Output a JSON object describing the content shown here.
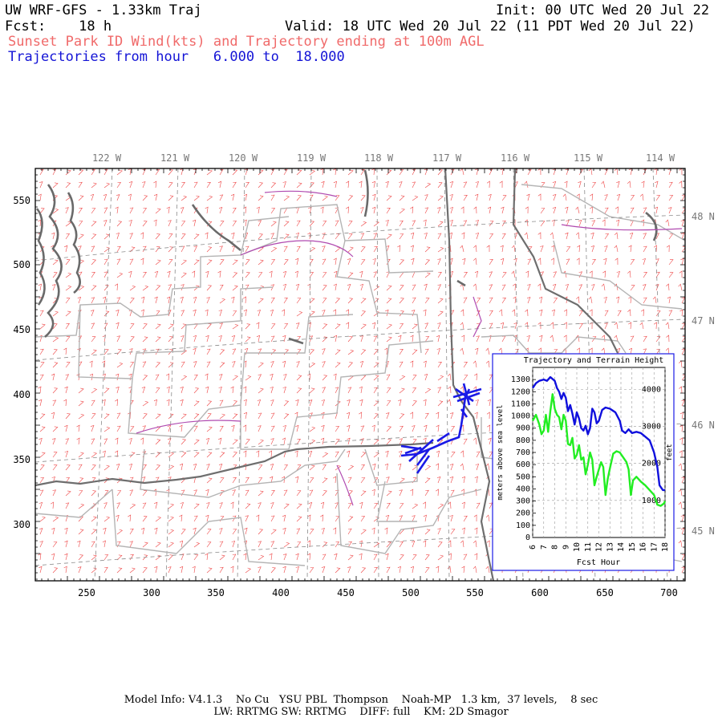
{
  "header": {
    "title": "UW WRF-GFS - 1.33km Traj",
    "init": "Init: 00 UTC Wed 20 Jul 22",
    "fcst_label": "Fcst:",
    "fcst_value": "18 h",
    "valid": "Valid: 18 UTC Wed 20 Jul 22 (11 PDT Wed 20 Jul 22)",
    "subtitle": "Sunset Park ID Wind(kts) and Trajectory ending at 100m AGL",
    "traj_label": "Trajectories from hour",
    "traj_from": "6.000",
    "traj_to_word": "to",
    "traj_to": "18.000"
  },
  "map": {
    "lon_labels": [
      "122 W",
      "121 W",
      "120 W",
      "119 W",
      "118 W",
      "117 W",
      "116 W",
      "115 W",
      "114 W"
    ],
    "lat_labels": [
      "48 N",
      "47 N",
      "46 N",
      "45 N"
    ],
    "x_ticks": [
      "250",
      "300",
      "350",
      "400",
      "450",
      "500",
      "550",
      "600",
      "650",
      "700"
    ],
    "y_ticks": [
      "550",
      "500",
      "450",
      "400",
      "350",
      "300"
    ],
    "colors": {
      "barbs": "#ee4444",
      "state_lines": "#777777",
      "county_lines": "#b0b0b0",
      "water": "#b040b0",
      "trajectory": "#1a1ae6"
    }
  },
  "inset": {
    "title": "Trajectory and Terrain Height",
    "ylabel_left": "meters above sea level",
    "ylabel_right": "feet",
    "xlabel": "Fcst Hour",
    "left_ticks": [
      "0",
      "100",
      "200",
      "300",
      "400",
      "500",
      "600",
      "700",
      "800",
      "900",
      "1000",
      "1100",
      "1200",
      "1300"
    ],
    "right_ticks": [
      "1000",
      "2000",
      "3000",
      "4000"
    ],
    "x_ticks": [
      "6",
      "7",
      "8",
      "9",
      "10",
      "11",
      "12",
      "13",
      "14",
      "15",
      "16",
      "17",
      "18"
    ],
    "series": [
      {
        "color": "#1010dd",
        "points": [
          [
            6.0,
            1230
          ],
          [
            6.3,
            1270
          ],
          [
            6.6,
            1290
          ],
          [
            7.0,
            1300
          ],
          [
            7.3,
            1290
          ],
          [
            7.6,
            1320
          ],
          [
            8.0,
            1290
          ],
          [
            8.2,
            1230
          ],
          [
            8.4,
            1200
          ],
          [
            8.6,
            1140
          ],
          [
            8.8,
            1190
          ],
          [
            9.0,
            1150
          ],
          [
            9.2,
            1040
          ],
          [
            9.4,
            1090
          ],
          [
            9.6,
            1020
          ],
          [
            9.8,
            930
          ],
          [
            10.0,
            1030
          ],
          [
            10.2,
            980
          ],
          [
            10.4,
            900
          ],
          [
            10.6,
            880
          ],
          [
            10.8,
            920
          ],
          [
            11.0,
            850
          ],
          [
            11.2,
            900
          ],
          [
            11.4,
            1060
          ],
          [
            11.6,
            1030
          ],
          [
            11.8,
            940
          ],
          [
            12.0,
            960
          ],
          [
            12.3,
            1050
          ],
          [
            12.6,
            1070
          ],
          [
            13.0,
            1060
          ],
          [
            13.5,
            1030
          ],
          [
            13.9,
            960
          ],
          [
            14.1,
            880
          ],
          [
            14.4,
            860
          ],
          [
            14.7,
            890
          ],
          [
            15.0,
            860
          ],
          [
            15.4,
            870
          ],
          [
            15.8,
            860
          ],
          [
            16.2,
            830
          ],
          [
            16.6,
            800
          ],
          [
            17.0,
            700
          ],
          [
            17.3,
            580
          ],
          [
            17.5,
            430
          ],
          [
            17.8,
            390
          ],
          [
            18.0,
            390
          ]
        ]
      },
      {
        "color": "#22ee22",
        "points": [
          [
            6.0,
            960
          ],
          [
            6.3,
            1010
          ],
          [
            6.6,
            930
          ],
          [
            6.8,
            850
          ],
          [
            7.0,
            880
          ],
          [
            7.2,
            1010
          ],
          [
            7.4,
            870
          ],
          [
            7.6,
            1040
          ],
          [
            7.8,
            1180
          ],
          [
            8.0,
            1060
          ],
          [
            8.2,
            1010
          ],
          [
            8.4,
            990
          ],
          [
            8.6,
            890
          ],
          [
            8.8,
            1010
          ],
          [
            9.0,
            960
          ],
          [
            9.2,
            770
          ],
          [
            9.4,
            760
          ],
          [
            9.6,
            820
          ],
          [
            9.8,
            650
          ],
          [
            10.0,
            680
          ],
          [
            10.2,
            760
          ],
          [
            10.4,
            640
          ],
          [
            10.6,
            660
          ],
          [
            10.8,
            520
          ],
          [
            11.0,
            600
          ],
          [
            11.2,
            700
          ],
          [
            11.4,
            640
          ],
          [
            11.6,
            430
          ],
          [
            11.8,
            500
          ],
          [
            12.0,
            560
          ],
          [
            12.2,
            620
          ],
          [
            12.4,
            580
          ],
          [
            12.6,
            350
          ],
          [
            12.8,
            480
          ],
          [
            13.0,
            570
          ],
          [
            13.3,
            690
          ],
          [
            13.6,
            710
          ],
          [
            13.9,
            700
          ],
          [
            14.2,
            660
          ],
          [
            14.5,
            620
          ],
          [
            14.7,
            560
          ],
          [
            14.9,
            350
          ],
          [
            15.1,
            470
          ],
          [
            15.4,
            500
          ],
          [
            15.8,
            460
          ],
          [
            16.2,
            430
          ],
          [
            16.6,
            390
          ],
          [
            17.0,
            350
          ],
          [
            17.3,
            270
          ],
          [
            17.6,
            260
          ],
          [
            17.9,
            280
          ],
          [
            18.0,
            300
          ]
        ]
      }
    ]
  },
  "footer": {
    "line1": "Model Info: V4.1.3    No Cu   YSU PBL  Thompson    Noah-MP   1.3 km,  37 levels,    8 sec",
    "line2": "LW: RRTMG SW: RRTMG    DIFF: full    KM: 2D Smagor"
  }
}
